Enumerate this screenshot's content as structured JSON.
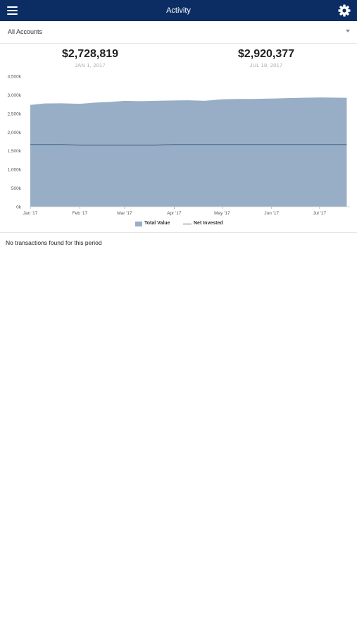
{
  "header": {
    "title": "Activity",
    "menu_icon": "hamburger-menu-icon",
    "settings_icon": "gear-icon",
    "background_color": "#0b2d63"
  },
  "account_selector": {
    "value": "All Accounts",
    "caret_icon": "chevron-down-icon"
  },
  "summary": {
    "start": {
      "value": "$2,728,819",
      "date": "JAN 1, 2017"
    },
    "end": {
      "value": "$2,920,377",
      "date": "JUL 18, 2017"
    }
  },
  "chart_data": {
    "type": "area",
    "x": [
      "Jan 1 2017",
      "Jan 10 2017",
      "Jan 20 2017",
      "Feb 1 2017",
      "Feb 10 2017",
      "Feb 20 2017",
      "Mar 1 2017",
      "Mar 10 2017",
      "Mar 20 2017",
      "Apr 1 2017",
      "Apr 10 2017",
      "Apr 20 2017",
      "May 1 2017",
      "May 10 2017",
      "May 20 2017",
      "Jun 1 2017",
      "Jun 10 2017",
      "Jun 20 2017",
      "Jul 1 2017",
      "Jul 10 2017",
      "Jul 18 2017"
    ],
    "series": [
      {
        "name": "Total Value",
        "values": [
          2728.819,
          2770,
          2775,
          2760,
          2790,
          2810,
          2840,
          2830,
          2840,
          2850,
          2855,
          2840,
          2880,
          2890,
          2890,
          2900,
          2910,
          2920,
          2930,
          2925,
          2920.377
        ],
        "color": "#98aec6"
      },
      {
        "name": "Net Invested",
        "values": [
          1670,
          1670,
          1670,
          1650,
          1650,
          1650,
          1650,
          1650,
          1650,
          1670,
          1670,
          1670,
          1670,
          1670,
          1670,
          1670,
          1670,
          1670,
          1670,
          1670,
          1670
        ],
        "color": "#4e6e8e"
      }
    ],
    "xticks": [
      "Jan '17",
      "Feb '17",
      "Mar '17",
      "Apr '17",
      "May '17",
      "Jun '17",
      "Jul '17"
    ],
    "yticks": [
      "0k",
      "500k",
      "1,000k",
      "1,500k",
      "2,000k",
      "2,500k",
      "3,000k",
      "3,500k"
    ],
    "ylim": [
      0,
      3500
    ],
    "grid": false,
    "legend_placement": "bottom-center"
  },
  "legend": {
    "total_value": "Total Value",
    "net_invested": "Net Invested"
  },
  "transactions": {
    "empty_message": "No transactions found for this period"
  }
}
